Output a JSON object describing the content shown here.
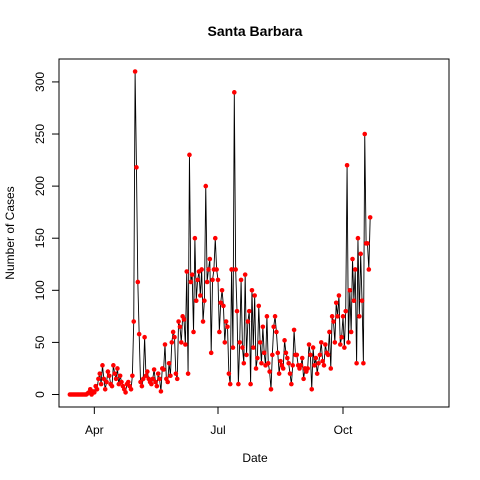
{
  "chart_data": {
    "type": "line",
    "title": "Santa Barbara",
    "xlabel": "Date",
    "ylabel": "Number of Cases",
    "x_type": "date",
    "xlim": [
      "2020-03-06",
      "2020-12-18"
    ],
    "ylim": [
      -12,
      322
    ],
    "x_ticks": [
      {
        "date": "2020-04-01",
        "label": "Apr"
      },
      {
        "date": "2020-07-01",
        "label": "Jul"
      },
      {
        "date": "2020-10-01",
        "label": "Oct"
      }
    ],
    "y_ticks": [
      0,
      50,
      100,
      150,
      200,
      250,
      300
    ],
    "grid": false,
    "line_color": "#000000",
    "point_color": "#ff0000",
    "series": [
      {
        "start_date": "2020-03-14",
        "values": [
          0,
          0,
          0,
          0,
          0,
          0,
          0,
          0,
          0,
          0,
          0,
          0,
          0,
          1,
          2,
          5,
          0,
          3,
          2,
          8,
          5,
          15,
          20,
          10,
          28,
          15,
          5,
          12,
          22,
          18,
          10,
          8,
          28,
          20,
          15,
          25,
          10,
          18,
          12,
          8,
          5,
          2,
          10,
          12,
          8,
          5,
          18,
          70,
          310,
          218,
          108,
          58,
          12,
          8,
          15,
          55,
          18,
          22,
          15,
          12,
          10,
          15,
          24,
          12,
          8,
          20,
          15,
          3,
          25,
          24,
          48,
          15,
          12,
          30,
          18,
          50,
          60,
          55,
          20,
          15,
          70,
          65,
          50,
          75,
          72,
          48,
          118,
          20,
          230,
          108,
          115,
          60,
          150,
          90,
          110,
          118,
          95,
          120,
          70,
          90,
          200,
          108,
          120,
          130,
          40,
          110,
          120,
          150,
          120,
          110,
          60,
          88,
          100,
          85,
          50,
          70,
          65,
          20,
          10,
          120,
          45,
          290,
          120,
          80,
          10,
          50,
          110,
          45,
          30,
          115,
          38,
          70,
          80,
          10,
          100,
          45,
          95,
          25,
          35,
          85,
          50,
          30,
          65,
          40,
          28,
          75,
          30,
          22,
          5,
          38,
          65,
          75,
          60,
          40,
          20,
          32,
          28,
          25,
          52,
          40,
          35,
          30,
          20,
          10,
          28,
          62,
          38,
          38,
          28,
          25,
          28,
          35,
          15,
          25,
          22,
          25,
          48,
          38,
          5,
          45,
          28,
          35,
          20,
          30,
          38,
          50,
          32,
          28,
          48,
          40,
          38,
          60,
          25,
          75,
          70,
          50,
          88,
          75,
          95,
          48,
          55,
          75,
          45,
          80,
          220,
          50,
          100,
          60,
          130,
          90,
          120,
          30,
          150,
          75,
          135,
          90,
          30,
          250,
          145,
          145,
          120,
          170
        ]
      }
    ]
  }
}
